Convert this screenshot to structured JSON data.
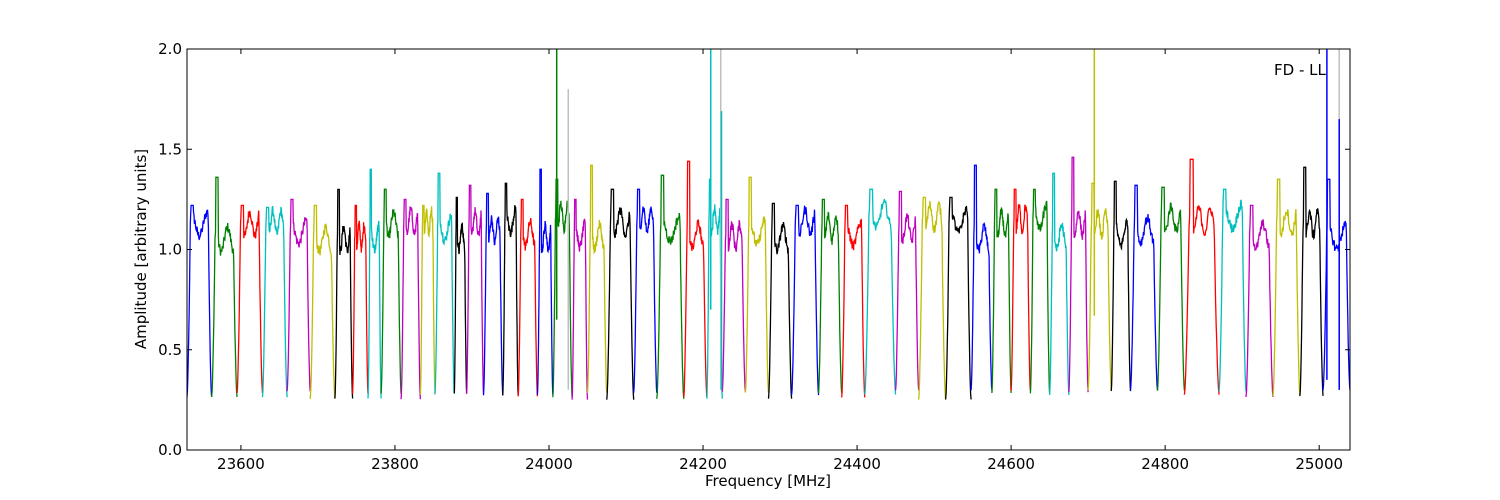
{
  "chart_data": {
    "type": "line",
    "title": "",
    "xlabel": "Frequency [MHz]",
    "ylabel": "Amplitude [arbitrary units]",
    "xlim": [
      23530,
      25040
    ],
    "ylim": [
      0.0,
      2.0
    ],
    "xticks": [
      23600,
      23800,
      24000,
      24200,
      24400,
      24600,
      24800,
      25000
    ],
    "yticks": [
      0.0,
      0.5,
      1.0,
      1.5,
      2.0
    ],
    "xtick_labels": [
      "23600",
      "23800",
      "24000",
      "24200",
      "24400",
      "24600",
      "24800",
      "25000"
    ],
    "ytick_labels": [
      "0.0",
      "0.5",
      "1.0",
      "1.5",
      "2.0"
    ],
    "annotation": "FD - LL",
    "grid": false,
    "legend": "none",
    "series_cycle_colors": [
      "#0000ff",
      "#008000",
      "#ff0000",
      "#00bfbf",
      "#bf00bf",
      "#bfbf00",
      "#000000"
    ],
    "band_shape": {
      "description": "Spectral windows plotted with cycling colors; each window has a flat top near 1.1-1.3 with edge dips down to about 0.25-0.3",
      "top_level": [
        1.05,
        1.35
      ],
      "edge_minimum": [
        0.25,
        0.3
      ]
    },
    "windows": [
      {
        "x0": 23530,
        "x1": 23562,
        "color": "#0000ff",
        "peak": 1.22
      },
      {
        "x0": 23562,
        "x1": 23595,
        "color": "#008000",
        "peak": 1.36
      },
      {
        "x0": 23595,
        "x1": 23628,
        "color": "#ff0000",
        "peak": 1.22
      },
      {
        "x0": 23628,
        "x1": 23660,
        "color": "#00bfbf",
        "peak": 1.21
      },
      {
        "x0": 23660,
        "x1": 23690,
        "color": "#bf00bf",
        "peak": 1.25
      },
      {
        "x0": 23690,
        "x1": 23722,
        "color": "#bfbf00",
        "peak": 1.22
      },
      {
        "x0": 23722,
        "x1": 23745,
        "color": "#000000",
        "peak": 1.3
      },
      {
        "x0": 23745,
        "x1": 23765,
        "color": "#ff0000",
        "peak": 1.22
      },
      {
        "x0": 23765,
        "x1": 23782,
        "color": "#00bfbf",
        "peak": 1.4
      },
      {
        "x0": 23782,
        "x1": 23808,
        "color": "#008000",
        "peak": 1.3
      },
      {
        "x0": 23808,
        "x1": 23833,
        "color": "#bf00bf",
        "peak": 1.25
      },
      {
        "x0": 23833,
        "x1": 23852,
        "color": "#bfbf00",
        "peak": 1.22
      },
      {
        "x0": 23852,
        "x1": 23877,
        "color": "#00bfbf",
        "peak": 1.38
      },
      {
        "x0": 23877,
        "x1": 23893,
        "color": "#000000",
        "peak": 1.26
      },
      {
        "x0": 23893,
        "x1": 23915,
        "color": "#bf00bf",
        "peak": 1.32
      },
      {
        "x0": 23915,
        "x1": 23940,
        "color": "#0000ff",
        "peak": 1.28
      },
      {
        "x0": 23940,
        "x1": 23960,
        "color": "#000000",
        "peak": 1.33
      },
      {
        "x0": 23960,
        "x1": 23985,
        "color": "#ff0000",
        "peak": 1.25
      },
      {
        "x0": 23985,
        "x1": 24005,
        "color": "#0000ff",
        "peak": 1.4
      },
      {
        "x0": 24005,
        "x1": 24030,
        "color": "#008000",
        "peak": 1.35
      },
      {
        "x0": 24030,
        "x1": 24050,
        "color": "#bf00bf",
        "peak": 1.25
      },
      {
        "x0": 24050,
        "x1": 24075,
        "color": "#bfbf00",
        "peak": 1.42
      },
      {
        "x0": 24075,
        "x1": 24110,
        "color": "#000000",
        "peak": 1.3
      },
      {
        "x0": 24110,
        "x1": 24140,
        "color": "#0000ff",
        "peak": 1.3
      },
      {
        "x0": 24140,
        "x1": 24175,
        "color": "#008000",
        "peak": 1.37
      },
      {
        "x0": 24175,
        "x1": 24205,
        "color": "#ff0000",
        "peak": 1.44
      },
      {
        "x0": 24205,
        "x1": 24225,
        "color": "#00bfbf",
        "peak": 1.35
      },
      {
        "x0": 24225,
        "x1": 24255,
        "color": "#bf00bf",
        "peak": 1.25
      },
      {
        "x0": 24255,
        "x1": 24285,
        "color": "#bfbf00",
        "peak": 1.36
      },
      {
        "x0": 24285,
        "x1": 24315,
        "color": "#000000",
        "peak": 1.23
      },
      {
        "x0": 24315,
        "x1": 24350,
        "color": "#0000ff",
        "peak": 1.22
      },
      {
        "x0": 24350,
        "x1": 24380,
        "color": "#008000",
        "peak": 1.25
      },
      {
        "x0": 24380,
        "x1": 24410,
        "color": "#ff0000",
        "peak": 1.22
      },
      {
        "x0": 24410,
        "x1": 24450,
        "color": "#00bfbf",
        "peak": 1.3
      },
      {
        "x0": 24450,
        "x1": 24480,
        "color": "#bf00bf",
        "peak": 1.29
      },
      {
        "x0": 24480,
        "x1": 24515,
        "color": "#bfbf00",
        "peak": 1.26
      },
      {
        "x0": 24515,
        "x1": 24548,
        "color": "#000000",
        "peak": 1.26
      },
      {
        "x0": 24548,
        "x1": 24575,
        "color": "#0000ff",
        "peak": 1.42
      },
      {
        "x0": 24575,
        "x1": 24600,
        "color": "#008000",
        "peak": 1.3
      },
      {
        "x0": 24600,
        "x1": 24625,
        "color": "#ff0000",
        "peak": 1.3
      },
      {
        "x0": 24625,
        "x1": 24650,
        "color": "#008000",
        "peak": 1.3
      },
      {
        "x0": 24650,
        "x1": 24675,
        "color": "#00bfbf",
        "peak": 1.38
      },
      {
        "x0": 24675,
        "x1": 24700,
        "color": "#bf00bf",
        "peak": 1.46
      },
      {
        "x0": 24700,
        "x1": 24730,
        "color": "#bfbf00",
        "peak": 1.33
      },
      {
        "x0": 24730,
        "x1": 24755,
        "color": "#000000",
        "peak": 1.34
      },
      {
        "x0": 24755,
        "x1": 24790,
        "color": "#0000ff",
        "peak": 1.32
      },
      {
        "x0": 24790,
        "x1": 24825,
        "color": "#008000",
        "peak": 1.31
      },
      {
        "x0": 24825,
        "x1": 24870,
        "color": "#ff0000",
        "peak": 1.45
      },
      {
        "x0": 24870,
        "x1": 24905,
        "color": "#00bfbf",
        "peak": 1.3
      },
      {
        "x0": 24905,
        "x1": 24940,
        "color": "#bf00bf",
        "peak": 1.22
      },
      {
        "x0": 24940,
        "x1": 24975,
        "color": "#bfbf00",
        "peak": 1.35
      },
      {
        "x0": 24975,
        "x1": 25005,
        "color": "#000000",
        "peak": 1.41
      },
      {
        "x0": 25005,
        "x1": 25040,
        "color": "#0000ff",
        "peak": 1.35
      }
    ],
    "spikes": [
      {
        "x": 24010,
        "y0": 0.65,
        "y1": 2.0,
        "color": "#008000"
      },
      {
        "x": 24025,
        "y0": 0.3,
        "y1": 1.8,
        "color": "#bfbfbf"
      },
      {
        "x": 24210,
        "y0": 0.7,
        "y1": 2.0,
        "color": "#00bfbf"
      },
      {
        "x": 24223,
        "y0": 0.3,
        "y1": 2.0,
        "color": "#bfbfbf"
      },
      {
        "x": 24224,
        "y0": 0.3,
        "y1": 1.69,
        "color": "#00bfbf"
      },
      {
        "x": 24708,
        "y0": 0.67,
        "y1": 2.0,
        "color": "#bfbf00"
      },
      {
        "x": 25010,
        "y0": 0.35,
        "y1": 2.0,
        "color": "#0000ff"
      },
      {
        "x": 25026,
        "y0": 0.3,
        "y1": 2.0,
        "color": "#bfbfbf"
      },
      {
        "x": 25026,
        "y0": 0.3,
        "y1": 1.65,
        "color": "#0000ff"
      }
    ]
  }
}
